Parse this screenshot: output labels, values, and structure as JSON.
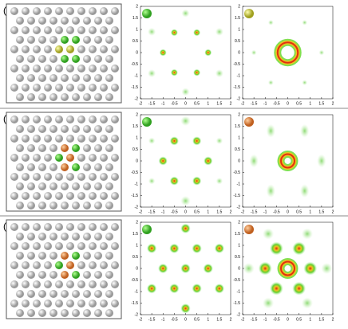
{
  "panels": [
    {
      "label": "(a)"
    },
    {
      "label": "(b)"
    },
    {
      "label": "(c)"
    }
  ],
  "axes": {
    "xlim": [
      -2,
      2
    ],
    "ylim": [
      -2,
      2
    ],
    "xticks": [
      -2,
      -1.5,
      -1,
      -0.5,
      0,
      0.5,
      1,
      1.5,
      2
    ],
    "yticks": [
      -2,
      -1.5,
      -1,
      -0.5,
      0,
      0.5,
      1,
      1.5,
      2
    ]
  }
}
